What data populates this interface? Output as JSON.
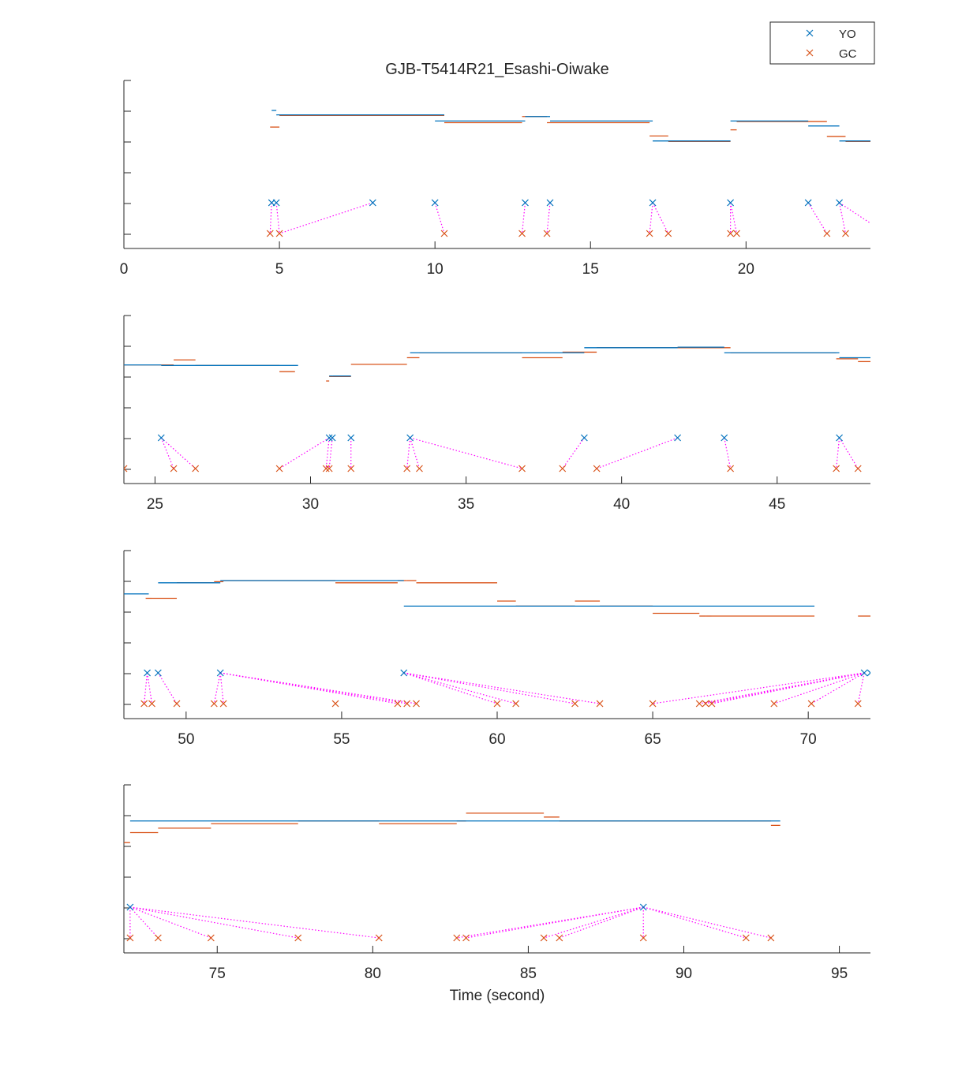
{
  "chart_data": {
    "type": "scatter",
    "title": "GJB-T5414R21_Esashi-Oiwake",
    "xlabel": "Time (second)",
    "ylabel": "",
    "legend": {
      "placement": "top-right",
      "entries": [
        "YO",
        "GC"
      ]
    },
    "colors": {
      "YO": "#0072BD",
      "GC": "#D95319",
      "link": "#FF00FF",
      "axis": "#262626"
    },
    "grid": false,
    "panels": [
      {
        "xlim": [
          0,
          24
        ],
        "xticks": [
          0,
          5,
          10,
          15,
          20
        ],
        "yo_segments": [
          [
            4.75,
            4.9,
            0.68
          ],
          [
            4.9,
            10.3,
            0.72
          ],
          [
            10.0,
            12.9,
            0.775
          ],
          [
            12.9,
            13.7,
            0.735
          ],
          [
            13.7,
            17.0,
            0.775
          ],
          [
            17.0,
            19.5,
            0.955
          ],
          [
            19.5,
            22.0,
            0.775
          ],
          [
            22.0,
            23.0,
            0.82
          ],
          [
            23.0,
            24.0,
            0.955
          ]
        ],
        "gc_segments": [
          [
            4.7,
            5.0,
            0.83
          ],
          [
            5.0,
            10.3,
            0.725
          ],
          [
            10.3,
            12.8,
            0.79
          ],
          [
            12.8,
            13.6,
            0.735
          ],
          [
            13.6,
            16.9,
            0.79
          ],
          [
            16.9,
            17.5,
            0.91
          ],
          [
            17.5,
            19.5,
            0.96
          ],
          [
            19.5,
            19.7,
            0.855
          ],
          [
            19.7,
            22.6,
            0.78
          ],
          [
            22.6,
            23.2,
            0.915
          ],
          [
            23.2,
            24.0,
            0.96
          ]
        ],
        "yo_onsets": [
          4.75,
          4.9,
          8.0,
          10.0,
          12.9,
          13.7,
          17.0,
          19.5,
          22.0,
          23.0
        ],
        "gc_onsets": [
          4.7,
          5.0,
          10.3,
          12.8,
          13.6,
          16.9,
          17.5,
          19.5,
          19.7,
          22.6,
          23.2
        ],
        "links": [
          [
            4.75,
            4.7
          ],
          [
            4.9,
            5.0
          ],
          [
            8.0,
            5.0
          ],
          [
            10.0,
            10.3
          ],
          [
            12.9,
            12.8
          ],
          [
            13.7,
            13.6
          ],
          [
            17.0,
            16.9
          ],
          [
            17.0,
            17.5
          ],
          [
            19.5,
            19.5
          ],
          [
            19.5,
            19.7
          ],
          [
            22.0,
            22.6
          ],
          [
            23.0,
            23.2
          ],
          [
            23.0,
            24.5
          ]
        ]
      },
      {
        "xlim": [
          24,
          48
        ],
        "xticks": [
          25,
          30,
          35,
          40,
          45
        ],
        "yo_segments": [
          [
            24.0,
            25.2,
            0.855
          ],
          [
            25.2,
            29.6,
            0.86
          ],
          [
            30.6,
            30.7,
            0.955
          ],
          [
            30.7,
            31.3,
            0.955
          ],
          [
            33.2,
            38.8,
            0.745
          ],
          [
            38.8,
            41.8,
            0.7
          ],
          [
            41.8,
            43.3,
            0.695
          ],
          [
            43.3,
            47.0,
            0.745
          ],
          [
            47.0,
            48.0,
            0.79
          ]
        ],
        "gc_onsets": [
          24.0,
          25.6,
          26.3,
          29.0,
          30.5,
          30.6,
          31.3,
          33.1,
          33.5,
          36.8,
          38.1,
          39.2,
          43.5,
          46.9,
          47.6
        ],
        "gc_segments": [
          [
            24.0,
            25.6,
            0.855
          ],
          [
            25.6,
            26.3,
            0.81
          ],
          [
            26.3,
            29.0,
            0.86
          ],
          [
            29.0,
            29.5,
            0.915
          ],
          [
            30.5,
            30.6,
            1.0
          ],
          [
            30.6,
            31.3,
            0.96
          ],
          [
            31.3,
            33.1,
            0.85
          ],
          [
            33.1,
            33.5,
            0.79
          ],
          [
            33.5,
            36.8,
            0.745
          ],
          [
            36.8,
            38.1,
            0.79
          ],
          [
            38.1,
            39.2,
            0.74
          ],
          [
            39.2,
            43.5,
            0.7
          ],
          [
            43.5,
            46.9,
            0.745
          ],
          [
            46.9,
            47.6,
            0.8
          ],
          [
            47.6,
            48.0,
            0.825
          ]
        ],
        "yo_onsets": [
          25.2,
          30.6,
          30.7,
          31.3,
          33.2,
          38.8,
          41.8,
          43.3,
          47.0
        ],
        "links": [
          [
            23.0,
            24.0
          ],
          [
            25.2,
            25.6
          ],
          [
            25.2,
            26.3
          ],
          [
            30.6,
            29.0
          ],
          [
            30.6,
            30.5
          ],
          [
            30.7,
            30.6
          ],
          [
            31.3,
            31.3
          ],
          [
            33.2,
            33.1
          ],
          [
            33.2,
            33.5
          ],
          [
            33.2,
            36.8
          ],
          [
            38.8,
            38.1
          ],
          [
            41.8,
            39.2
          ],
          [
            43.3,
            43.5
          ],
          [
            47.0,
            46.9
          ],
          [
            47.0,
            47.6
          ]
        ]
      },
      {
        "xlim": [
          48,
          72
        ],
        "xticks": [
          50,
          55,
          60,
          65,
          70
        ],
        "yo_segments": [
          [
            48.0,
            48.8,
            0.8
          ],
          [
            49.1,
            51.1,
            0.7
          ],
          [
            51.1,
            57.0,
            0.68
          ],
          [
            57.0,
            70.2,
            0.91
          ]
        ],
        "gc_segments": [
          [
            48.7,
            48.9,
            0.84
          ],
          [
            48.9,
            49.7,
            0.84
          ],
          [
            49.7,
            50.9,
            0.7
          ],
          [
            50.9,
            51.2,
            0.69
          ],
          [
            51.2,
            54.8,
            0.68
          ],
          [
            54.8,
            56.8,
            0.7
          ],
          [
            56.8,
            57.1,
            0.68
          ],
          [
            57.1,
            57.4,
            0.68
          ],
          [
            57.4,
            60.0,
            0.7
          ],
          [
            60.0,
            60.6,
            0.865
          ],
          [
            60.6,
            62.5,
            0.91
          ],
          [
            62.5,
            63.3,
            0.865
          ],
          [
            63.3,
            65.0,
            0.91
          ],
          [
            65.0,
            66.5,
            0.975
          ],
          [
            66.5,
            66.7,
            1.0
          ],
          [
            66.7,
            66.9,
            1.0
          ],
          [
            66.9,
            70.2,
            1.0
          ],
          [
            71.6,
            72.0,
            1.0
          ]
        ],
        "yo_onsets": [
          48.75,
          49.1,
          51.1,
          57.0,
          71.8,
          72.0
        ],
        "gc_onsets": [
          48.65,
          48.9,
          49.7,
          50.9,
          51.2,
          54.8,
          56.8,
          57.1,
          57.4,
          60.0,
          60.6,
          62.5,
          63.3,
          65.0,
          66.5,
          66.7,
          66.9,
          68.9,
          70.1,
          71.6
        ],
        "links": [
          [
            48.75,
            48.65
          ],
          [
            48.75,
            48.9
          ],
          [
            49.1,
            49.7
          ],
          [
            51.1,
            50.9
          ],
          [
            51.1,
            51.2
          ],
          [
            51.1,
            56.8
          ],
          [
            51.1,
            57.1
          ],
          [
            51.1,
            57.4
          ],
          [
            57.0,
            60.0
          ],
          [
            57.0,
            60.6
          ],
          [
            57.0,
            62.5
          ],
          [
            57.0,
            63.3
          ],
          [
            71.8,
            65.0
          ],
          [
            71.8,
            66.5
          ],
          [
            71.8,
            66.7
          ],
          [
            71.8,
            66.9
          ],
          [
            71.8,
            68.9
          ],
          [
            71.8,
            70.1
          ],
          [
            71.8,
            71.6
          ]
        ]
      },
      {
        "xlim": [
          72,
          96
        ],
        "xticks": [
          75,
          80,
          85,
          90,
          95
        ],
        "yo_segments": [
          [
            72.2,
            93.1,
            0.735
          ]
        ],
        "gc_segments": [
          [
            72.0,
            72.2,
            0.93
          ],
          [
            72.2,
            73.1,
            0.84
          ],
          [
            73.1,
            74.8,
            0.8
          ],
          [
            74.8,
            77.6,
            0.76
          ],
          [
            77.6,
            80.2,
            0.735
          ],
          [
            80.2,
            82.7,
            0.76
          ],
          [
            82.7,
            83.0,
            0.735
          ],
          [
            83.0,
            85.5,
            0.665
          ],
          [
            85.5,
            86.0,
            0.7
          ],
          [
            86.0,
            88.7,
            0.735
          ],
          [
            88.7,
            92.0,
            0.735
          ],
          [
            92.0,
            92.8,
            0.735
          ],
          [
            92.8,
            93.1,
            0.775
          ]
        ],
        "yo_onsets": [
          72.2,
          88.7
        ],
        "gc_onsets": [
          72.2,
          73.1,
          74.8,
          77.6,
          80.2,
          82.7,
          83.0,
          85.5,
          86.0,
          88.7,
          92.0,
          92.8
        ],
        "links": [
          [
            72.2,
            72.2
          ],
          [
            72.2,
            73.1
          ],
          [
            72.2,
            74.8
          ],
          [
            72.2,
            77.6
          ],
          [
            72.2,
            80.2
          ],
          [
            88.7,
            82.7
          ],
          [
            88.7,
            83.0
          ],
          [
            88.7,
            85.5
          ],
          [
            88.7,
            86.0
          ],
          [
            88.7,
            88.7
          ],
          [
            88.7,
            92.0
          ],
          [
            88.7,
            92.8
          ]
        ]
      }
    ]
  }
}
